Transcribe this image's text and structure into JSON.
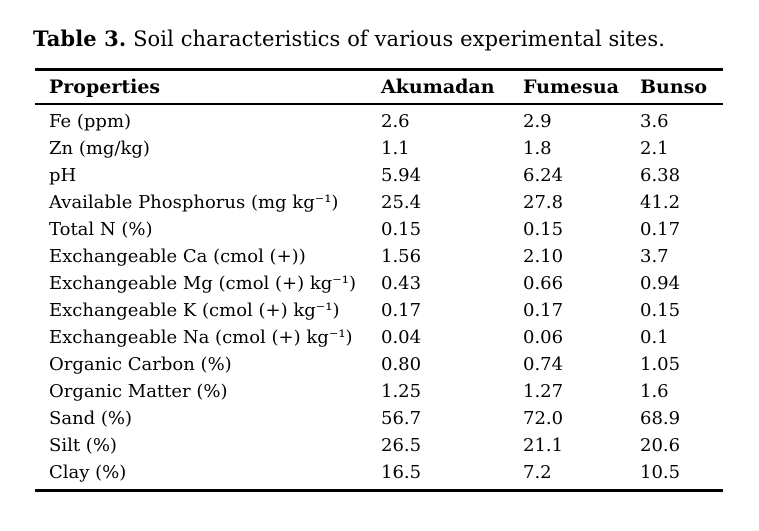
{
  "page": {
    "background": "#ffffff",
    "text_color": "#000000",
    "rule_color": "#000000"
  },
  "caption": {
    "label": "Table 3.",
    "text": "Soil characteristics of various experimental sites."
  },
  "table": {
    "columns": [
      "Properties",
      "Akumadan",
      "Fumesua",
      "Bunso"
    ],
    "rows": [
      {
        "property": "Fe (ppm)",
        "values": [
          "2.6",
          "2.9",
          "3.6"
        ]
      },
      {
        "property": "Zn (mg/kg)",
        "values": [
          "1.1",
          "1.8",
          "2.1"
        ]
      },
      {
        "property": "pH",
        "values": [
          "5.94",
          "6.24",
          "6.38"
        ]
      },
      {
        "property": "Available Phosphorus (mg kg⁻¹)",
        "values": [
          "25.4",
          "27.8",
          "41.2"
        ]
      },
      {
        "property": "Total N (%)",
        "values": [
          "0.15",
          "0.15",
          "0.17"
        ]
      },
      {
        "property": "Exchangeable Ca (cmol (+))",
        "values": [
          "1.56",
          "2.10",
          "3.7"
        ]
      },
      {
        "property": "Exchangeable Mg (cmol (+) kg⁻¹)",
        "values": [
          "0.43",
          "0.66",
          "0.94"
        ]
      },
      {
        "property": "Exchangeable K (cmol (+) kg⁻¹)",
        "values": [
          "0.17",
          "0.17",
          "0.15"
        ]
      },
      {
        "property": "Exchangeable Na (cmol (+) kg⁻¹)",
        "values": [
          "0.04",
          "0.06",
          "0.1"
        ]
      },
      {
        "property": "Organic Carbon (%)",
        "values": [
          "0.80",
          "0.74",
          "1.05"
        ]
      },
      {
        "property": "Organic Matter (%)",
        "values": [
          "1.25",
          "1.27",
          "1.6"
        ]
      },
      {
        "property": "Sand (%)",
        "values": [
          "56.7",
          "72.0",
          "68.9"
        ]
      },
      {
        "property": "Silt (%)",
        "values": [
          "26.5",
          "21.1",
          "20.6"
        ]
      },
      {
        "property": "Clay (%)",
        "values": [
          "16.5",
          "7.2",
          "10.5"
        ]
      }
    ]
  }
}
